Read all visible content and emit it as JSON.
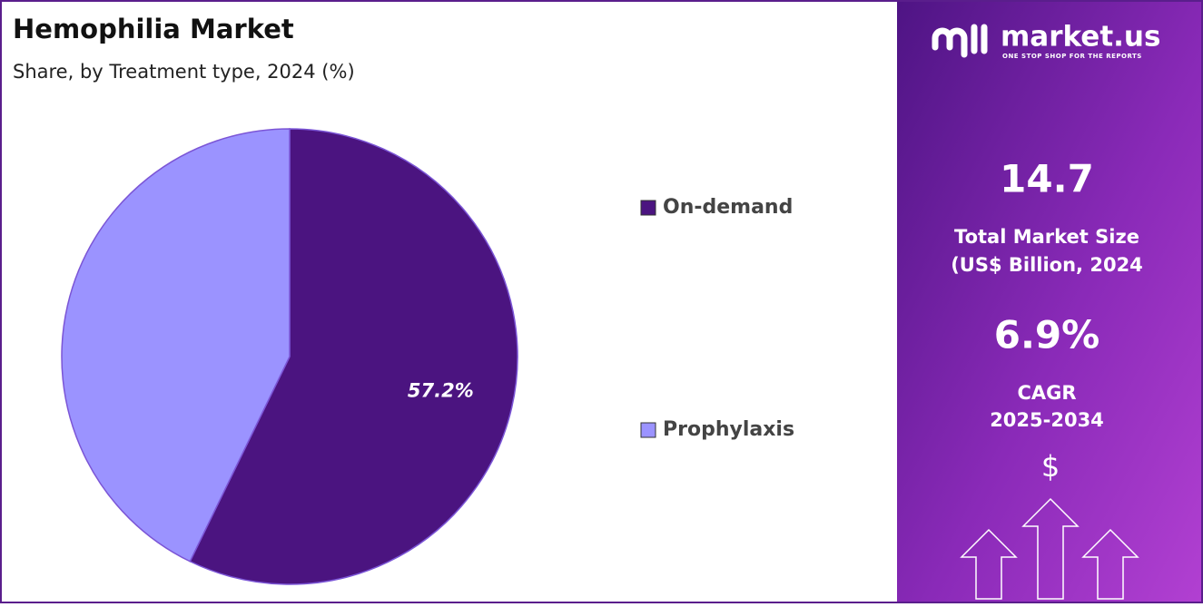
{
  "chart_data": {
    "type": "pie",
    "title": "Hemophilia Market",
    "subtitle": "Share, by Treatment type, 2024 (%)",
    "categories": [
      "On-demand",
      "Prophylaxis"
    ],
    "values": [
      57.2,
      42.8
    ],
    "value_labels": [
      "57.2%",
      null
    ],
    "colors": [
      "#4b1480",
      "#9b93ff"
    ]
  },
  "panel": {
    "brand": "market.us",
    "tagline": "ONE STOP SHOP FOR THE REPORTS",
    "market_size": "14.7",
    "market_size_label_1": "Total Market Size",
    "market_size_label_2": "(US$ Billion, 2024",
    "cagr": "6.9%",
    "cagr_label_1": "CAGR",
    "cagr_label_2": "2025-2034",
    "currency_icon": "$"
  }
}
